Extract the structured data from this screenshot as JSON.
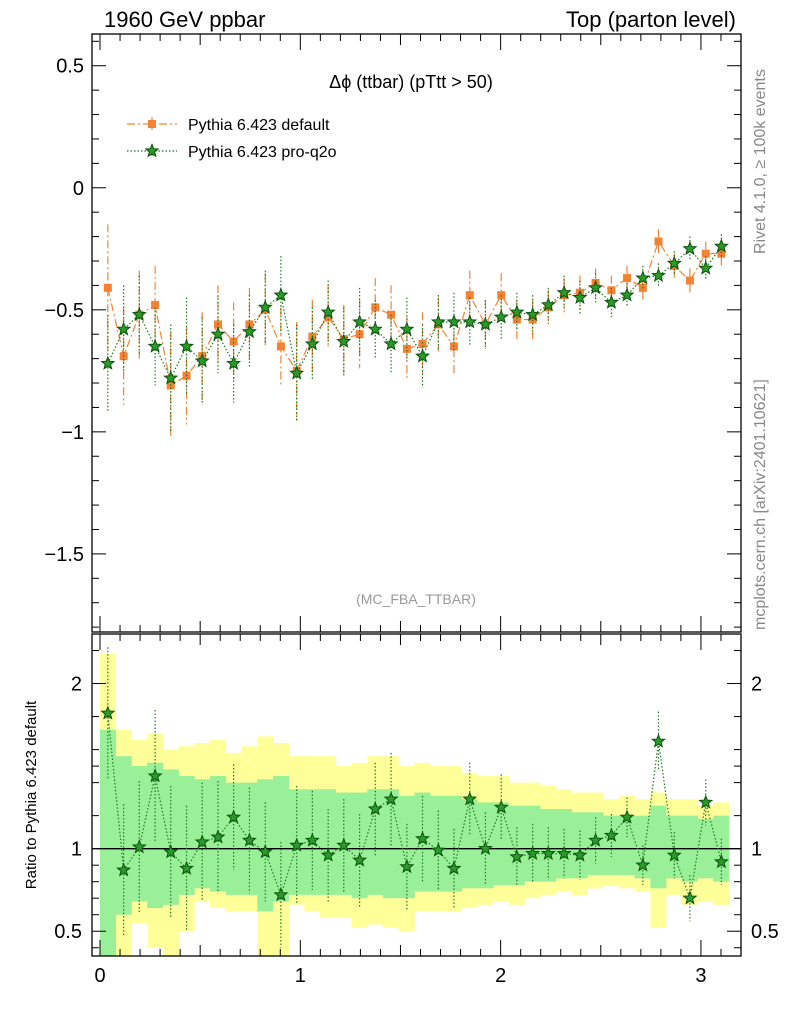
{
  "header": {
    "left": "1960 GeV ppbar",
    "right": "Top (parton level)",
    "side_top": "Rivet 4.1.0, ≥ 100k events",
    "side_bottom": "mcplots.cern.ch [arXiv:2401.10621]"
  },
  "colors": {
    "default_series": "#f58232",
    "proq2o_series": "#1f7a1f",
    "band_yellow": "#ffff99",
    "band_green": "#99f099",
    "axis": "#000000",
    "analysis_label": "#999999"
  },
  "chart_data": [
    {
      "type": "line",
      "panel": "main",
      "title": "Δϕ (ttbar) (pTtt > 50)",
      "analysis_label": "(MC_FBA_TTBAR)",
      "xlabel": "",
      "ylabel": "",
      "xlim": [
        -0.04,
        3.2
      ],
      "ylim": [
        -1.82,
        0.63
      ],
      "y_ticks": [
        0.5,
        0,
        -0.5,
        -1,
        -1.5
      ],
      "y_tick_labels": [
        "0.5",
        "0",
        "−0.5",
        "−1",
        "−1.5"
      ],
      "legend_position": "top-left",
      "x": [
        0.039,
        0.118,
        0.196,
        0.275,
        0.353,
        0.432,
        0.51,
        0.589,
        0.667,
        0.746,
        0.825,
        0.903,
        0.982,
        1.06,
        1.139,
        1.217,
        1.296,
        1.374,
        1.453,
        1.532,
        1.61,
        1.689,
        1.767,
        1.846,
        1.924,
        2.003,
        2.081,
        2.16,
        2.238,
        2.317,
        2.396,
        2.474,
        2.553,
        2.631,
        2.71,
        2.788,
        2.867,
        2.945,
        3.024,
        3.102
      ],
      "series": [
        {
          "name": "Pythia 6.423 default",
          "marker": "square",
          "line": "dash-dot",
          "values": [
            -0.41,
            -0.69,
            -0.52,
            -0.48,
            -0.81,
            -0.77,
            -0.69,
            -0.56,
            -0.63,
            -0.56,
            -0.5,
            -0.65,
            -0.75,
            -0.61,
            -0.53,
            -0.62,
            -0.6,
            -0.49,
            -0.52,
            -0.66,
            -0.64,
            -0.56,
            -0.65,
            -0.44,
            -0.56,
            -0.44,
            -0.54,
            -0.54,
            -0.49,
            -0.44,
            -0.43,
            -0.39,
            -0.42,
            -0.37,
            -0.41,
            -0.22,
            -0.32,
            -0.38,
            -0.27,
            -0.27
          ],
          "errors": [
            0.26,
            0.2,
            0.18,
            0.16,
            0.22,
            0.2,
            0.18,
            0.16,
            0.16,
            0.15,
            0.15,
            0.16,
            0.2,
            0.15,
            0.13,
            0.14,
            0.14,
            0.12,
            0.12,
            0.13,
            0.13,
            0.11,
            0.12,
            0.1,
            0.1,
            0.09,
            0.08,
            0.08,
            0.07,
            0.07,
            0.07,
            0.06,
            0.06,
            0.05,
            0.05,
            0.05,
            0.05,
            0.05,
            0.05,
            0.05
          ]
        },
        {
          "name": "Pythia 6.423 pro-q2o",
          "marker": "star",
          "line": "dotted",
          "values": [
            -0.72,
            -0.58,
            -0.52,
            -0.65,
            -0.78,
            -0.65,
            -0.71,
            -0.6,
            -0.72,
            -0.59,
            -0.49,
            -0.44,
            -0.76,
            -0.64,
            -0.51,
            -0.63,
            -0.55,
            -0.58,
            -0.64,
            -0.58,
            -0.69,
            -0.55,
            -0.55,
            -0.55,
            -0.56,
            -0.53,
            -0.51,
            -0.52,
            -0.48,
            -0.43,
            -0.45,
            -0.41,
            -0.47,
            -0.44,
            -0.37,
            -0.36,
            -0.31,
            -0.25,
            -0.33,
            -0.24
          ],
          "errors": [
            0.2,
            0.18,
            0.16,
            0.16,
            0.22,
            0.2,
            0.18,
            0.16,
            0.16,
            0.15,
            0.15,
            0.16,
            0.2,
            0.15,
            0.13,
            0.14,
            0.14,
            0.12,
            0.12,
            0.13,
            0.13,
            0.11,
            0.12,
            0.1,
            0.1,
            0.09,
            0.08,
            0.08,
            0.07,
            0.07,
            0.07,
            0.06,
            0.06,
            0.05,
            0.05,
            0.05,
            0.05,
            0.05,
            0.05,
            0.05
          ]
        }
      ]
    },
    {
      "type": "line",
      "panel": "ratio",
      "ylabel": "Ratio to Pythia 6.423 default",
      "xlim": [
        -0.04,
        3.2
      ],
      "ylim": [
        0.35,
        2.3
      ],
      "x_ticks": [
        0,
        1,
        2,
        3
      ],
      "x_tick_labels": [
        "0",
        "1",
        "2",
        "3"
      ],
      "y_ticks": [
        2,
        1,
        0.5
      ],
      "y_tick_labels": [
        "2",
        "1",
        "0.5"
      ],
      "reference": 1,
      "bins": [
        0.0,
        0.0785,
        0.157,
        0.2355,
        0.314,
        0.3925,
        0.471,
        0.5495,
        0.628,
        0.7065,
        0.785,
        0.8635,
        0.942,
        1.0205,
        1.099,
        1.1775,
        1.256,
        1.3345,
        1.413,
        1.4915,
        1.57,
        1.6485,
        1.727,
        1.8055,
        1.884,
        1.9625,
        2.041,
        2.1195,
        2.198,
        2.2765,
        2.355,
        2.4335,
        2.512,
        2.5905,
        2.669,
        2.7475,
        2.826,
        2.9045,
        2.983,
        3.0615,
        3.14
      ],
      "band_yellow_upper": [
        2.18,
        1.72,
        1.66,
        1.7,
        1.6,
        1.62,
        1.64,
        1.66,
        1.58,
        1.62,
        1.68,
        1.64,
        1.56,
        1.56,
        1.56,
        1.5,
        1.52,
        1.56,
        1.56,
        1.5,
        1.52,
        1.5,
        1.5,
        1.46,
        1.44,
        1.44,
        1.4,
        1.4,
        1.38,
        1.36,
        1.34,
        1.34,
        1.3,
        1.32,
        1.3,
        1.34,
        1.3,
        1.3,
        1.26,
        1.28
      ],
      "band_yellow_lower": [
        0.35,
        0.35,
        0.55,
        0.4,
        0.35,
        0.5,
        0.68,
        0.64,
        0.62,
        0.62,
        0.35,
        0.35,
        0.66,
        0.62,
        0.58,
        0.58,
        0.52,
        0.54,
        0.52,
        0.5,
        0.62,
        0.62,
        0.62,
        0.64,
        0.66,
        0.68,
        0.66,
        0.7,
        0.72,
        0.74,
        0.72,
        0.76,
        0.78,
        0.76,
        0.74,
        0.52,
        0.72,
        0.66,
        0.68,
        0.66
      ],
      "band_green_upper": [
        1.72,
        1.56,
        1.5,
        1.52,
        1.48,
        1.44,
        1.42,
        1.44,
        1.4,
        1.4,
        1.42,
        1.44,
        1.36,
        1.36,
        1.36,
        1.34,
        1.34,
        1.36,
        1.36,
        1.32,
        1.34,
        1.32,
        1.32,
        1.3,
        1.28,
        1.28,
        1.26,
        1.26,
        1.24,
        1.24,
        1.22,
        1.22,
        1.2,
        1.2,
        1.2,
        1.26,
        1.2,
        1.2,
        1.18,
        1.2
      ],
      "band_green_lower": [
        0.35,
        0.6,
        0.68,
        0.64,
        0.66,
        0.72,
        0.76,
        0.74,
        0.72,
        0.72,
        0.62,
        0.68,
        0.72,
        0.72,
        0.72,
        0.72,
        0.7,
        0.72,
        0.7,
        0.7,
        0.74,
        0.74,
        0.74,
        0.76,
        0.76,
        0.78,
        0.78,
        0.8,
        0.8,
        0.82,
        0.82,
        0.84,
        0.84,
        0.84,
        0.82,
        0.76,
        0.82,
        0.8,
        0.82,
        0.8
      ],
      "x": [
        0.039,
        0.118,
        0.196,
        0.275,
        0.353,
        0.432,
        0.51,
        0.589,
        0.667,
        0.746,
        0.825,
        0.903,
        0.982,
        1.06,
        1.139,
        1.217,
        1.296,
        1.374,
        1.453,
        1.532,
        1.61,
        1.689,
        1.767,
        1.846,
        1.924,
        2.003,
        2.081,
        2.16,
        2.238,
        2.317,
        2.396,
        2.474,
        2.553,
        2.631,
        2.71,
        2.788,
        2.867,
        2.945,
        3.024,
        3.102
      ],
      "series": [
        {
          "name": "Pythia 6.423 pro-q2o",
          "values": [
            1.82,
            0.87,
            1.01,
            1.44,
            0.98,
            0.88,
            1.04,
            1.07,
            1.19,
            1.05,
            0.98,
            0.72,
            1.02,
            1.05,
            0.96,
            1.02,
            0.93,
            1.24,
            1.3,
            0.89,
            1.06,
            0.99,
            0.88,
            1.3,
            1.0,
            1.25,
            0.95,
            0.97,
            0.97,
            0.97,
            0.96,
            1.05,
            1.08,
            1.19,
            0.9,
            1.65,
            0.96,
            0.7,
            1.28,
            0.92
          ],
          "errors": [
            0.4,
            0.4,
            0.4,
            0.4,
            0.4,
            0.38,
            0.36,
            0.34,
            0.32,
            0.32,
            0.3,
            0.32,
            0.36,
            0.3,
            0.28,
            0.28,
            0.28,
            0.28,
            0.28,
            0.26,
            0.26,
            0.24,
            0.24,
            0.22,
            0.22,
            0.2,
            0.18,
            0.18,
            0.16,
            0.15,
            0.15,
            0.14,
            0.13,
            0.12,
            0.12,
            0.18,
            0.14,
            0.14,
            0.14,
            0.14
          ]
        }
      ]
    }
  ]
}
